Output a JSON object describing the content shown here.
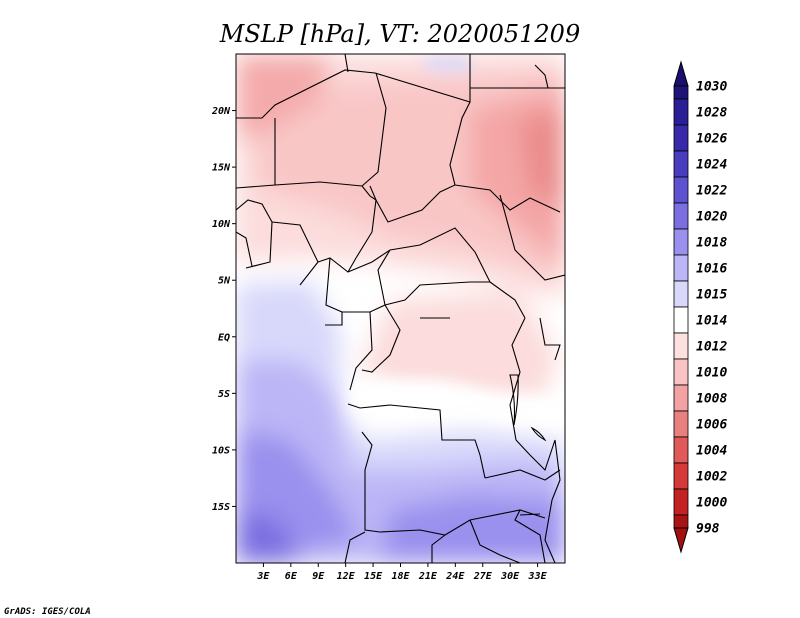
{
  "title": "MSLP [hPa], VT: 2020051209",
  "credit": "GrADS: IGES/COLA",
  "map": {
    "lat_range": [
      -20,
      25
    ],
    "lon_range": [
      0,
      36
    ],
    "lat_ticks": [
      {
        "value": 20,
        "label": "20N"
      },
      {
        "value": 15,
        "label": "15N"
      },
      {
        "value": 10,
        "label": "10N"
      },
      {
        "value": 5,
        "label": "5N"
      },
      {
        "value": 0,
        "label": "EQ"
      },
      {
        "value": -5,
        "label": "5S"
      },
      {
        "value": -10,
        "label": "10S"
      },
      {
        "value": -15,
        "label": "15S"
      }
    ],
    "lon_ticks": [
      {
        "value": 3,
        "label": "3E"
      },
      {
        "value": 6,
        "label": "6E"
      },
      {
        "value": 9,
        "label": "9E"
      },
      {
        "value": 12,
        "label": "12E"
      },
      {
        "value": 15,
        "label": "15E"
      },
      {
        "value": 18,
        "label": "18E"
      },
      {
        "value": 21,
        "label": "21E"
      },
      {
        "value": 24,
        "label": "24E"
      },
      {
        "value": 27,
        "label": "27E"
      },
      {
        "value": 30,
        "label": "30E"
      },
      {
        "value": 33,
        "label": "33E"
      }
    ]
  },
  "colorbar": {
    "levels": [
      {
        "label": "1030",
        "color": "#1e1478"
      },
      {
        "label": "1028",
        "color": "#2a1e96"
      },
      {
        "label": "1026",
        "color": "#3828aa"
      },
      {
        "label": "1024",
        "color": "#4a3cbe"
      },
      {
        "label": "1022",
        "color": "#5f52d0"
      },
      {
        "label": "1020",
        "color": "#7a6ee0"
      },
      {
        "label": "1018",
        "color": "#9a90ee"
      },
      {
        "label": "1016",
        "color": "#bcb6f6"
      },
      {
        "label": "1015",
        "color": "#d8d8fb"
      },
      {
        "label": "1014",
        "color": "#ffffff"
      },
      {
        "label": "1012",
        "color": "#fde0e0"
      },
      {
        "label": "1010",
        "color": "#f9c3c3"
      },
      {
        "label": "1008",
        "color": "#f2a2a2"
      },
      {
        "label": "1006",
        "color": "#e98080"
      },
      {
        "label": "1004",
        "color": "#e05a5a"
      },
      {
        "label": "1002",
        "color": "#d43a3a"
      },
      {
        "label": "1000",
        "color": "#c42222"
      },
      {
        "label": "998",
        "color": "#a81414"
      }
    ],
    "top_color": "#1a0e6e",
    "bottom_color": "#a31010"
  }
}
